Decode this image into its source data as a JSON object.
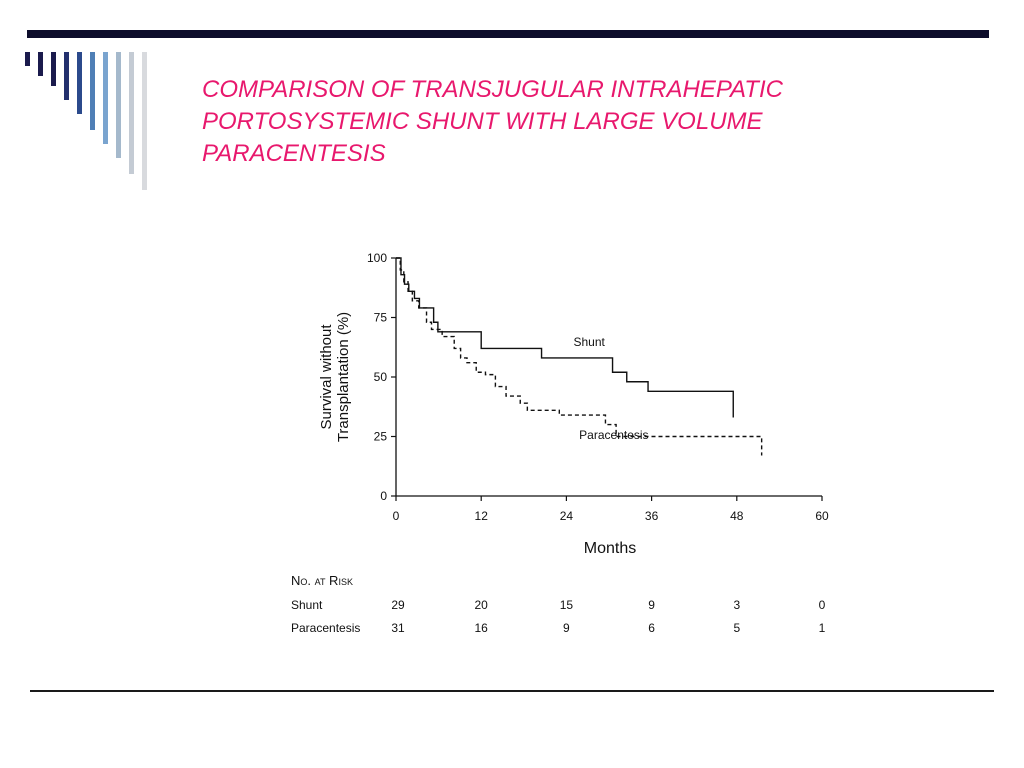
{
  "slide": {
    "title_lines": [
      "COMPARISON OF TRANSJUGULAR INTRAHEPATIC",
      "PORTOSYSTEMIC SHUNT WITH  LARGE VOLUME",
      "PARACENTESIS"
    ],
    "title_color": "#e8186d",
    "rule_color": "#0d0d2b"
  },
  "chart_data": {
    "type": "line",
    "subtype": "step",
    "xlabel": "Months",
    "ylabel_lines": [
      "Survival without",
      "Transplantation (%)"
    ],
    "xlim": [
      0,
      60
    ],
    "ylim": [
      0,
      100
    ],
    "x_ticks": [
      "0",
      "12",
      "24",
      "36",
      "48",
      "60"
    ],
    "y_ticks": [
      "0",
      "25",
      "50",
      "75",
      "100"
    ],
    "grid": false,
    "series": [
      {
        "name": "Shunt",
        "line_style": "solid",
        "points": [
          [
            0,
            100
          ],
          [
            0.7,
            93
          ],
          [
            1.2,
            89
          ],
          [
            1.8,
            86
          ],
          [
            2.6,
            83
          ],
          [
            3.3,
            79
          ],
          [
            5.3,
            73
          ],
          [
            5.9,
            69
          ],
          [
            12,
            62
          ],
          [
            20.5,
            58
          ],
          [
            30.5,
            52
          ],
          [
            32.5,
            48
          ],
          [
            35.5,
            44
          ],
          [
            47.5,
            33
          ]
        ],
        "end": 47.5
      },
      {
        "name": "Paracentesis",
        "line_style": "dashed",
        "points": [
          [
            0,
            100
          ],
          [
            0.6,
            95
          ],
          [
            1.1,
            90
          ],
          [
            1.7,
            86
          ],
          [
            2.3,
            82
          ],
          [
            3.2,
            79
          ],
          [
            4.3,
            73
          ],
          [
            5.0,
            70
          ],
          [
            6.5,
            67
          ],
          [
            8.2,
            62
          ],
          [
            9.1,
            58
          ],
          [
            10,
            56
          ],
          [
            11.3,
            52
          ],
          [
            12.6,
            51
          ],
          [
            14,
            46
          ],
          [
            15.5,
            42
          ],
          [
            17.5,
            39
          ],
          [
            18.5,
            36
          ],
          [
            23,
            34
          ],
          [
            29.5,
            30
          ],
          [
            31,
            25
          ],
          [
            51.5,
            17
          ]
        ],
        "end": 51.5
      }
    ],
    "series_labels": [
      {
        "text": "Shunt",
        "x": 25,
        "y": 63
      },
      {
        "text": "Paracentesis",
        "x": 25.8,
        "y": 24
      }
    ]
  },
  "risk_table": {
    "heading": "No. at Risk",
    "columns_months": [
      0,
      12,
      24,
      36,
      48,
      60
    ],
    "rows": [
      {
        "label": "Shunt",
        "values": [
          "29",
          "20",
          "15",
          "9",
          "3",
          "0"
        ]
      },
      {
        "label": "Paracentesis",
        "values": [
          "31",
          "16",
          "9",
          "6",
          "5",
          "1"
        ]
      }
    ]
  }
}
